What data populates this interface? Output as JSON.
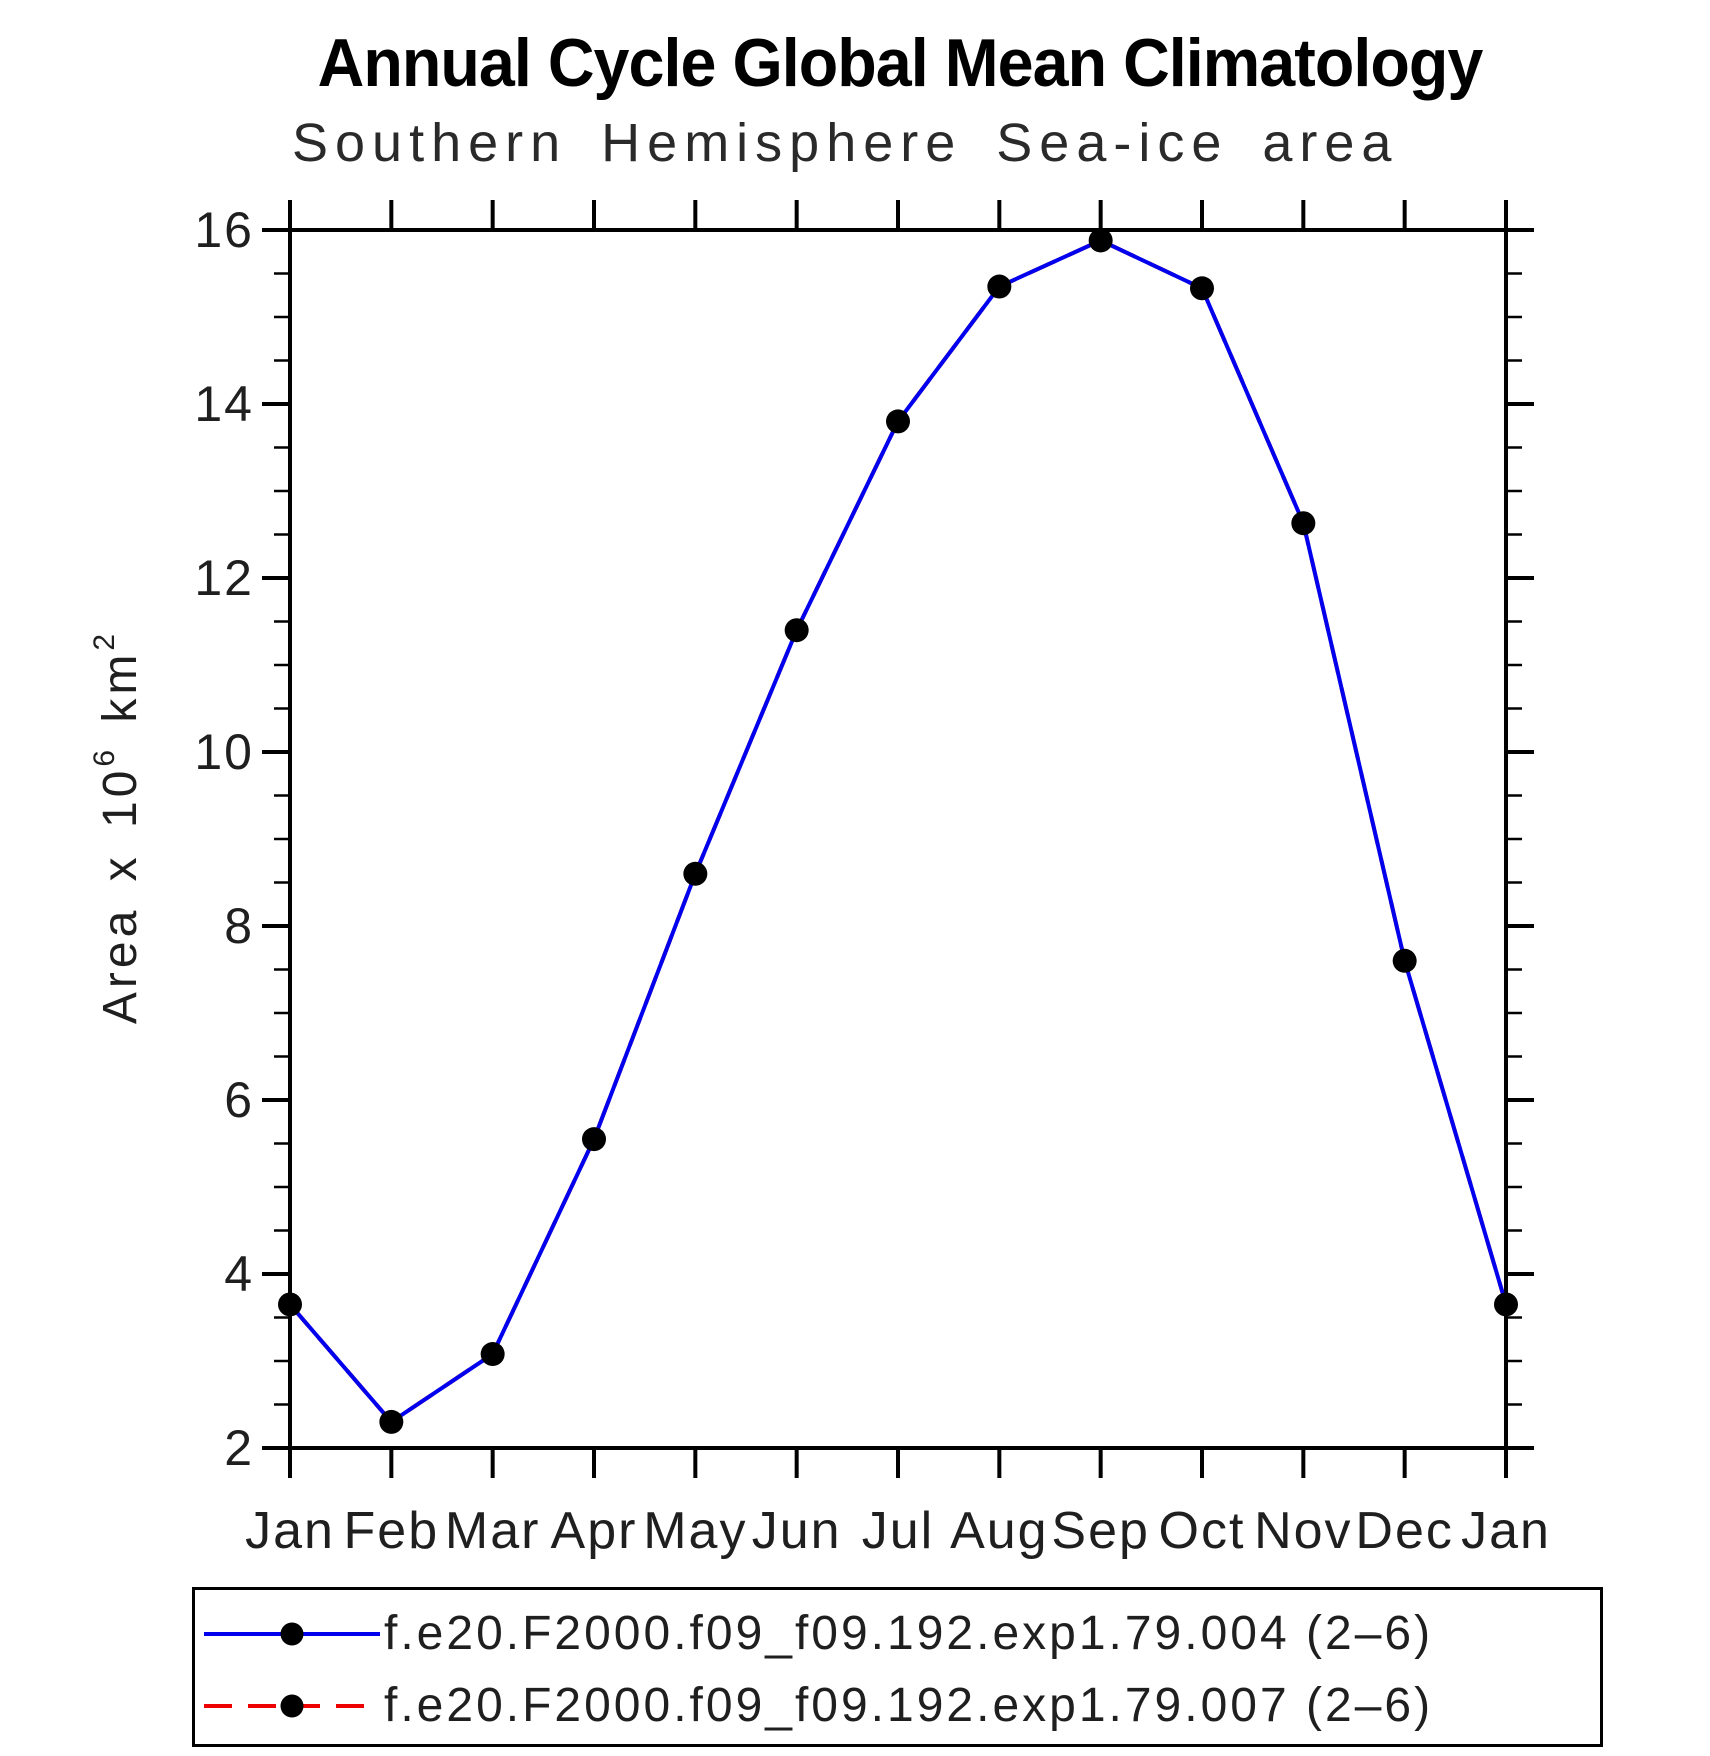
{
  "chart_data": {
    "type": "line",
    "title": "Annual Cycle Global Mean Climatology",
    "subtitle": "Southern Hemisphere Sea-ice area",
    "xlabel": "",
    "ylabel": "Area x 10^6 km^2",
    "y_axis_title_parts": {
      "base1": "Area x 10",
      "sup1": "6",
      "base2": " km",
      "sup2": "2"
    },
    "x_tick_labels": [
      "Jan",
      "Feb",
      "Mar",
      "Apr",
      "May",
      "Jun",
      "Jul",
      "Aug",
      "Sep",
      "Oct",
      "Nov",
      "Dec",
      "Jan"
    ],
    "y_ticks": [
      2,
      4,
      6,
      8,
      10,
      12,
      14,
      16
    ],
    "y_minor_step": 0.5,
    "ylim": [
      2,
      16
    ],
    "grid": false,
    "legend_position": "bottom",
    "series": [
      {
        "name": "f.e20.F2000.f09_f09.192.exp1.79.004 (2–6)",
        "color": "#0000ee",
        "line_style": "solid",
        "marker": "circle",
        "marker_color": "#000000",
        "values": [
          3.65,
          2.3,
          3.08,
          5.55,
          8.6,
          11.4,
          13.8,
          15.35,
          15.88,
          15.33,
          12.63,
          7.6,
          3.65
        ]
      },
      {
        "name": "f.e20.F2000.f09_f09.192.exp1.79.007 (2–6)",
        "color": "#ee0000",
        "line_style": "dashed",
        "marker": "circle",
        "marker_color": "#000000",
        "values": [
          3.65,
          2.3,
          3.08,
          5.55,
          8.6,
          11.4,
          13.8,
          15.35,
          15.88,
          15.33,
          12.63,
          7.6,
          3.65
        ]
      }
    ]
  },
  "colors": {
    "axis": "#000000",
    "tick_label": "#1f1f1f",
    "background": "#ffffff"
  }
}
